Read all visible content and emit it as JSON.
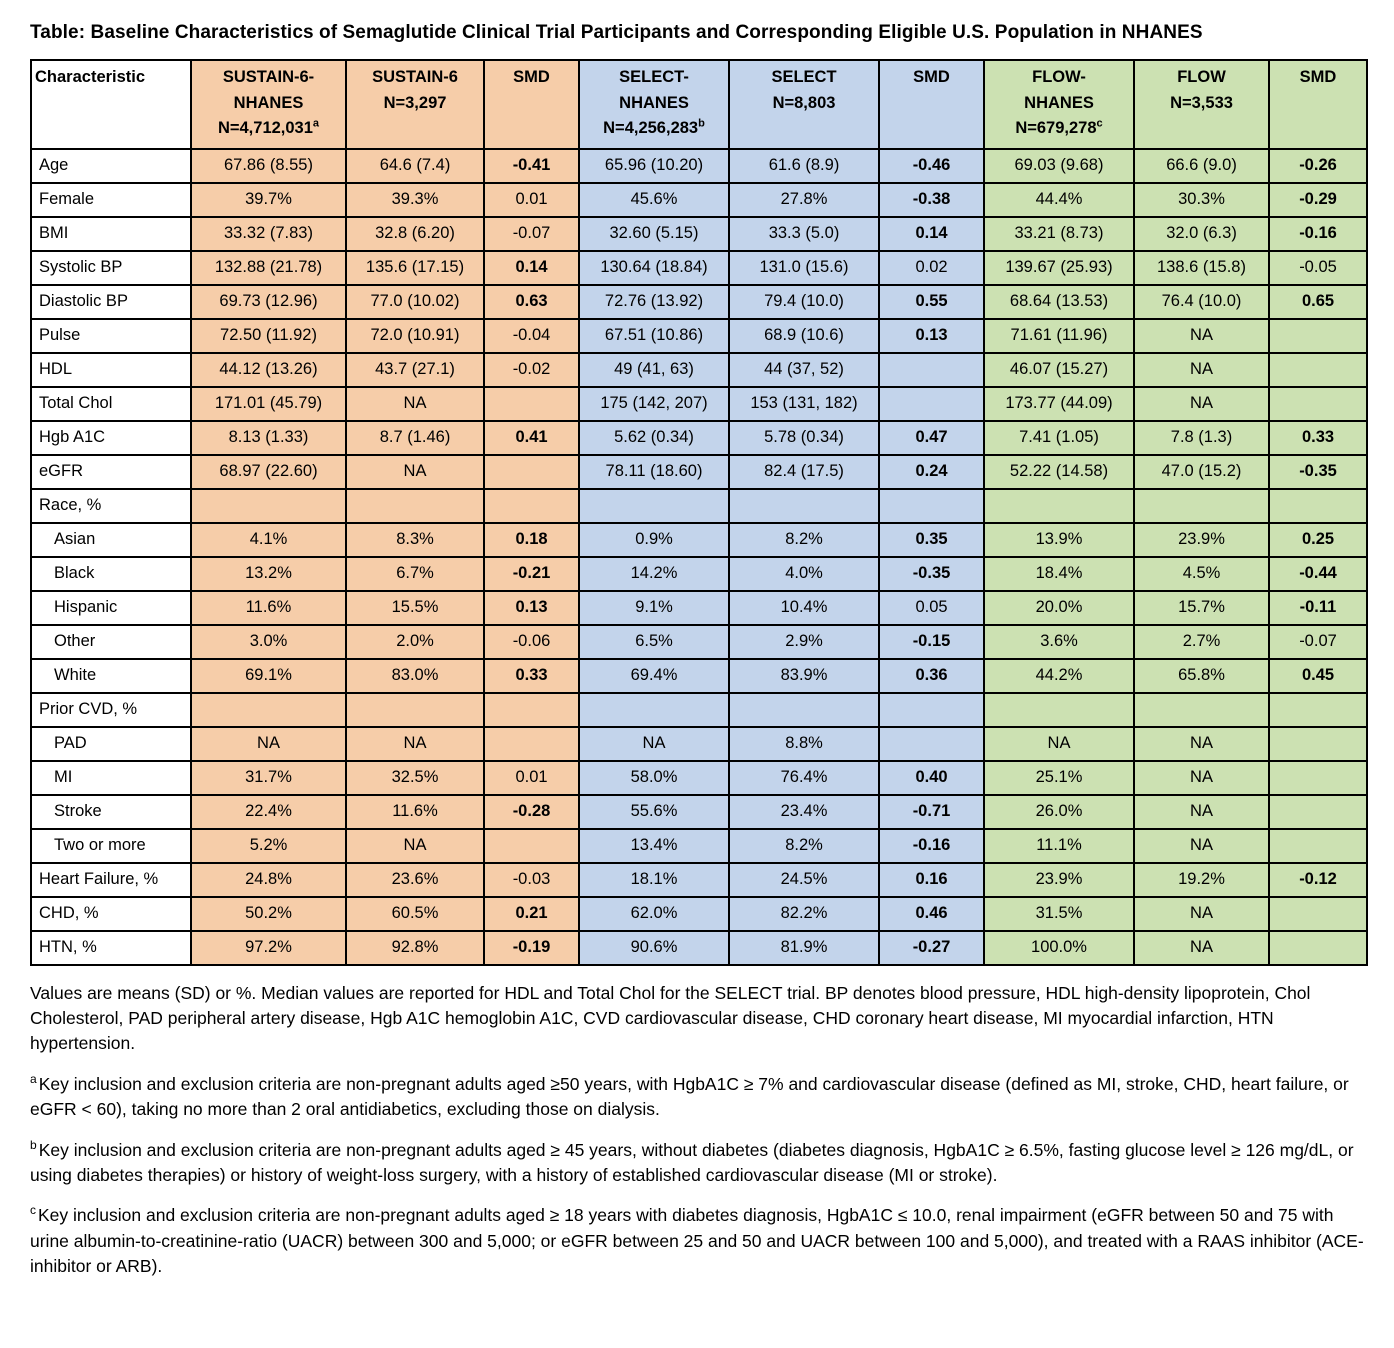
{
  "title": "Table: Baseline Characteristics of Semaglutide Clinical Trial Participants and Corresponding Eligible U.S. Population in NHANES",
  "colors": {
    "white": "#ffffff",
    "orange": "#f6cda9",
    "blue": "#c3d4eb",
    "green": "#cce1b2"
  },
  "table": {
    "columns": [
      {
        "id": "characteristic",
        "color": "white",
        "lines": [
          "Characteristic"
        ]
      },
      {
        "id": "sustain6-nhanes",
        "color": "orange",
        "lines": [
          "SUSTAIN-6-",
          "NHANES",
          "N=4,712,031"
        ],
        "sup": "a"
      },
      {
        "id": "sustain6",
        "color": "orange",
        "lines": [
          "SUSTAIN-6",
          "N=3,297"
        ]
      },
      {
        "id": "smd-sustain",
        "color": "orange",
        "lines": [
          "SMD"
        ]
      },
      {
        "id": "select-nhanes",
        "color": "blue",
        "lines": [
          "SELECT-",
          "NHANES",
          "N=4,256,283"
        ],
        "sup": "b"
      },
      {
        "id": "select",
        "color": "blue",
        "lines": [
          "SELECT",
          "N=8,803"
        ]
      },
      {
        "id": "smd-select",
        "color": "blue",
        "lines": [
          "SMD"
        ]
      },
      {
        "id": "flow-nhanes",
        "color": "green",
        "lines": [
          "FLOW-",
          "NHANES",
          "N=679,278"
        ],
        "sup": "c"
      },
      {
        "id": "flow",
        "color": "green",
        "lines": [
          "FLOW",
          "N=3,533"
        ]
      },
      {
        "id": "smd-flow",
        "color": "green",
        "lines": [
          "SMD"
        ]
      }
    ],
    "rows": [
      {
        "label": "Age",
        "indent": false,
        "cells": [
          {
            "t": "67.86 (8.55)"
          },
          {
            "t": "64.6 (7.4)"
          },
          {
            "t": "-0.41",
            "b": true
          },
          {
            "t": "65.96 (10.20)"
          },
          {
            "t": "61.6 (8.9)"
          },
          {
            "t": "-0.46",
            "b": true
          },
          {
            "t": "69.03 (9.68)"
          },
          {
            "t": "66.6 (9.0)"
          },
          {
            "t": "-0.26",
            "b": true
          }
        ]
      },
      {
        "label": "Female",
        "indent": false,
        "cells": [
          {
            "t": "39.7%"
          },
          {
            "t": "39.3%"
          },
          {
            "t": "0.01"
          },
          {
            "t": "45.6%"
          },
          {
            "t": "27.8%"
          },
          {
            "t": "-0.38",
            "b": true
          },
          {
            "t": "44.4%"
          },
          {
            "t": "30.3%"
          },
          {
            "t": "-0.29",
            "b": true
          }
        ]
      },
      {
        "label": "BMI",
        "indent": false,
        "cells": [
          {
            "t": "33.32 (7.83)"
          },
          {
            "t": "32.8 (6.20)"
          },
          {
            "t": "-0.07"
          },
          {
            "t": "32.60 (5.15)"
          },
          {
            "t": "33.3 (5.0)"
          },
          {
            "t": "0.14",
            "b": true
          },
          {
            "t": "33.21 (8.73)"
          },
          {
            "t": "32.0 (6.3)"
          },
          {
            "t": "-0.16",
            "b": true
          }
        ]
      },
      {
        "label": "Systolic BP",
        "indent": false,
        "cells": [
          {
            "t": "132.88 (21.78)"
          },
          {
            "t": "135.6 (17.15)"
          },
          {
            "t": "0.14",
            "b": true
          },
          {
            "t": "130.64 (18.84)"
          },
          {
            "t": "131.0 (15.6)"
          },
          {
            "t": "0.02"
          },
          {
            "t": "139.67 (25.93)"
          },
          {
            "t": "138.6 (15.8)"
          },
          {
            "t": "-0.05"
          }
        ]
      },
      {
        "label": "Diastolic BP",
        "indent": false,
        "cells": [
          {
            "t": "69.73 (12.96)"
          },
          {
            "t": "77.0 (10.02)"
          },
          {
            "t": "0.63",
            "b": true
          },
          {
            "t": "72.76 (13.92)"
          },
          {
            "t": "79.4 (10.0)"
          },
          {
            "t": "0.55",
            "b": true
          },
          {
            "t": "68.64 (13.53)"
          },
          {
            "t": "76.4 (10.0)"
          },
          {
            "t": "0.65",
            "b": true
          }
        ]
      },
      {
        "label": "Pulse",
        "indent": false,
        "cells": [
          {
            "t": "72.50 (11.92)"
          },
          {
            "t": "72.0 (10.91)"
          },
          {
            "t": "-0.04"
          },
          {
            "t": "67.51 (10.86)"
          },
          {
            "t": "68.9 (10.6)"
          },
          {
            "t": "0.13",
            "b": true
          },
          {
            "t": "71.61 (11.96)"
          },
          {
            "t": "NA"
          },
          {
            "t": ""
          }
        ]
      },
      {
        "label": "HDL",
        "indent": false,
        "cells": [
          {
            "t": "44.12 (13.26)"
          },
          {
            "t": "43.7 (27.1)"
          },
          {
            "t": "-0.02"
          },
          {
            "t": "49 (41, 63)"
          },
          {
            "t": "44 (37, 52)"
          },
          {
            "t": ""
          },
          {
            "t": "46.07 (15.27)"
          },
          {
            "t": "NA"
          },
          {
            "t": ""
          }
        ]
      },
      {
        "label": "Total Chol",
        "indent": false,
        "cells": [
          {
            "t": "171.01 (45.79)"
          },
          {
            "t": "NA"
          },
          {
            "t": ""
          },
          {
            "t": "175 (142, 207)"
          },
          {
            "t": "153 (131, 182)"
          },
          {
            "t": ""
          },
          {
            "t": "173.77 (44.09)"
          },
          {
            "t": "NA"
          },
          {
            "t": ""
          }
        ]
      },
      {
        "label": "Hgb A1C",
        "indent": false,
        "cells": [
          {
            "t": "8.13 (1.33)"
          },
          {
            "t": "8.7 (1.46)"
          },
          {
            "t": "0.41",
            "b": true
          },
          {
            "t": "5.62 (0.34)"
          },
          {
            "t": "5.78 (0.34)"
          },
          {
            "t": "0.47",
            "b": true
          },
          {
            "t": "7.41 (1.05)"
          },
          {
            "t": "7.8 (1.3)"
          },
          {
            "t": "0.33",
            "b": true
          }
        ]
      },
      {
        "label": "eGFR",
        "indent": false,
        "cells": [
          {
            "t": "68.97 (22.60)"
          },
          {
            "t": "NA"
          },
          {
            "t": ""
          },
          {
            "t": "78.11 (18.60)"
          },
          {
            "t": "82.4 (17.5)"
          },
          {
            "t": "0.24",
            "b": true
          },
          {
            "t": "52.22 (14.58)"
          },
          {
            "t": "47.0 (15.2)"
          },
          {
            "t": "-0.35",
            "b": true
          }
        ]
      },
      {
        "label": "Race, %",
        "indent": false,
        "cells": [
          {
            "t": ""
          },
          {
            "t": ""
          },
          {
            "t": ""
          },
          {
            "t": ""
          },
          {
            "t": ""
          },
          {
            "t": ""
          },
          {
            "t": ""
          },
          {
            "t": ""
          },
          {
            "t": ""
          }
        ]
      },
      {
        "label": "Asian",
        "indent": true,
        "cells": [
          {
            "t": "4.1%"
          },
          {
            "t": "8.3%"
          },
          {
            "t": "0.18",
            "b": true
          },
          {
            "t": "0.9%"
          },
          {
            "t": "8.2%"
          },
          {
            "t": "0.35",
            "b": true
          },
          {
            "t": "13.9%"
          },
          {
            "t": "23.9%"
          },
          {
            "t": "0.25",
            "b": true
          }
        ]
      },
      {
        "label": "Black",
        "indent": true,
        "cells": [
          {
            "t": "13.2%"
          },
          {
            "t": "6.7%"
          },
          {
            "t": "-0.21",
            "b": true
          },
          {
            "t": "14.2%"
          },
          {
            "t": "4.0%"
          },
          {
            "t": "-0.35",
            "b": true
          },
          {
            "t": "18.4%"
          },
          {
            "t": "4.5%"
          },
          {
            "t": "-0.44",
            "b": true
          }
        ]
      },
      {
        "label": "Hispanic",
        "indent": true,
        "cells": [
          {
            "t": "11.6%"
          },
          {
            "t": "15.5%"
          },
          {
            "t": "0.13",
            "b": true
          },
          {
            "t": "9.1%"
          },
          {
            "t": "10.4%"
          },
          {
            "t": "0.05"
          },
          {
            "t": "20.0%"
          },
          {
            "t": "15.7%"
          },
          {
            "t": "-0.11",
            "b": true
          }
        ]
      },
      {
        "label": "Other",
        "indent": true,
        "cells": [
          {
            "t": "3.0%"
          },
          {
            "t": "2.0%"
          },
          {
            "t": "-0.06"
          },
          {
            "t": "6.5%"
          },
          {
            "t": "2.9%"
          },
          {
            "t": "-0.15",
            "b": true
          },
          {
            "t": "3.6%"
          },
          {
            "t": "2.7%"
          },
          {
            "t": "-0.07"
          }
        ]
      },
      {
        "label": "White",
        "indent": true,
        "cells": [
          {
            "t": "69.1%"
          },
          {
            "t": "83.0%"
          },
          {
            "t": "0.33",
            "b": true
          },
          {
            "t": "69.4%"
          },
          {
            "t": "83.9%"
          },
          {
            "t": "0.36",
            "b": true
          },
          {
            "t": "44.2%"
          },
          {
            "t": "65.8%"
          },
          {
            "t": "0.45",
            "b": true
          }
        ]
      },
      {
        "label": "Prior CVD, %",
        "indent": false,
        "cells": [
          {
            "t": ""
          },
          {
            "t": ""
          },
          {
            "t": ""
          },
          {
            "t": ""
          },
          {
            "t": ""
          },
          {
            "t": ""
          },
          {
            "t": ""
          },
          {
            "t": ""
          },
          {
            "t": ""
          }
        ]
      },
      {
        "label": "PAD",
        "indent": true,
        "cells": [
          {
            "t": "NA"
          },
          {
            "t": "NA"
          },
          {
            "t": ""
          },
          {
            "t": "NA"
          },
          {
            "t": "8.8%"
          },
          {
            "t": ""
          },
          {
            "t": "NA"
          },
          {
            "t": "NA"
          },
          {
            "t": ""
          }
        ]
      },
      {
        "label": "MI",
        "indent": true,
        "cells": [
          {
            "t": "31.7%"
          },
          {
            "t": "32.5%"
          },
          {
            "t": "0.01"
          },
          {
            "t": "58.0%"
          },
          {
            "t": "76.4%"
          },
          {
            "t": "0.40",
            "b": true
          },
          {
            "t": "25.1%"
          },
          {
            "t": "NA"
          },
          {
            "t": ""
          }
        ]
      },
      {
        "label": "Stroke",
        "indent": true,
        "cells": [
          {
            "t": "22.4%"
          },
          {
            "t": "11.6%"
          },
          {
            "t": "-0.28",
            "b": true
          },
          {
            "t": "55.6%"
          },
          {
            "t": "23.4%"
          },
          {
            "t": "-0.71",
            "b": true
          },
          {
            "t": "26.0%"
          },
          {
            "t": "NA"
          },
          {
            "t": ""
          }
        ]
      },
      {
        "label": "Two or more",
        "indent": true,
        "cells": [
          {
            "t": "5.2%"
          },
          {
            "t": "NA"
          },
          {
            "t": ""
          },
          {
            "t": "13.4%"
          },
          {
            "t": "8.2%"
          },
          {
            "t": "-0.16",
            "b": true
          },
          {
            "t": "11.1%"
          },
          {
            "t": "NA"
          },
          {
            "t": ""
          }
        ]
      },
      {
        "label": "Heart Failure, %",
        "indent": false,
        "cells": [
          {
            "t": "24.8%"
          },
          {
            "t": "23.6%"
          },
          {
            "t": "-0.03"
          },
          {
            "t": "18.1%"
          },
          {
            "t": "24.5%"
          },
          {
            "t": "0.16",
            "b": true
          },
          {
            "t": "23.9%"
          },
          {
            "t": "19.2%"
          },
          {
            "t": "-0.12",
            "b": true
          }
        ]
      },
      {
        "label": "CHD, %",
        "indent": false,
        "cells": [
          {
            "t": "50.2%"
          },
          {
            "t": "60.5%"
          },
          {
            "t": "0.21",
            "b": true
          },
          {
            "t": "62.0%"
          },
          {
            "t": "82.2%"
          },
          {
            "t": "0.46",
            "b": true
          },
          {
            "t": "31.5%"
          },
          {
            "t": "NA"
          },
          {
            "t": ""
          }
        ]
      },
      {
        "label": "HTN, %",
        "indent": false,
        "cells": [
          {
            "t": "97.2%"
          },
          {
            "t": "92.8%"
          },
          {
            "t": "-0.19",
            "b": true
          },
          {
            "t": "90.6%"
          },
          {
            "t": "81.9%"
          },
          {
            "t": "-0.27",
            "b": true
          },
          {
            "t": "100.0%"
          },
          {
            "t": "NA"
          },
          {
            "t": ""
          }
        ]
      }
    ]
  },
  "footnotes": {
    "general": "Values are means (SD) or %. Median values are reported for HDL and Total Chol for the SELECT trial. BP denotes blood pressure, HDL high-density lipoprotein, Chol Cholesterol, PAD peripheral artery disease, Hgb A1C hemoglobin A1C, CVD cardiovascular disease, CHD coronary heart disease, MI myocardial infarction, HTN hypertension.",
    "items": [
      {
        "marker": "a",
        "text": "Key inclusion and exclusion criteria are non-pregnant adults aged ≥50 years, with HgbA1C ≥ 7% and cardiovascular disease (defined as MI, stroke, CHD, heart failure, or eGFR < 60), taking no more than 2 oral antidiabetics, excluding those on dialysis."
      },
      {
        "marker": "b",
        "text": "Key inclusion and exclusion criteria are non-pregnant adults aged ≥ 45 years, without diabetes (diabetes diagnosis, HgbA1C ≥ 6.5%, fasting glucose level ≥ 126 mg/dL, or using diabetes therapies) or history of weight-loss surgery, with a history of established cardiovascular disease (MI or stroke)."
      },
      {
        "marker": "c",
        "text": "Key inclusion and exclusion criteria are non-pregnant adults aged ≥ 18 years with diabetes diagnosis, HgbA1C ≤ 10.0, renal impairment (eGFR between 50 and 75 with urine albumin-to-creatinine-ratio (UACR) between 300 and 5,000; or eGFR between 25 and 50 and UACR between 100 and 5,000), and treated with a RAAS inhibitor (ACE-inhibitor or ARB)."
      }
    ]
  }
}
